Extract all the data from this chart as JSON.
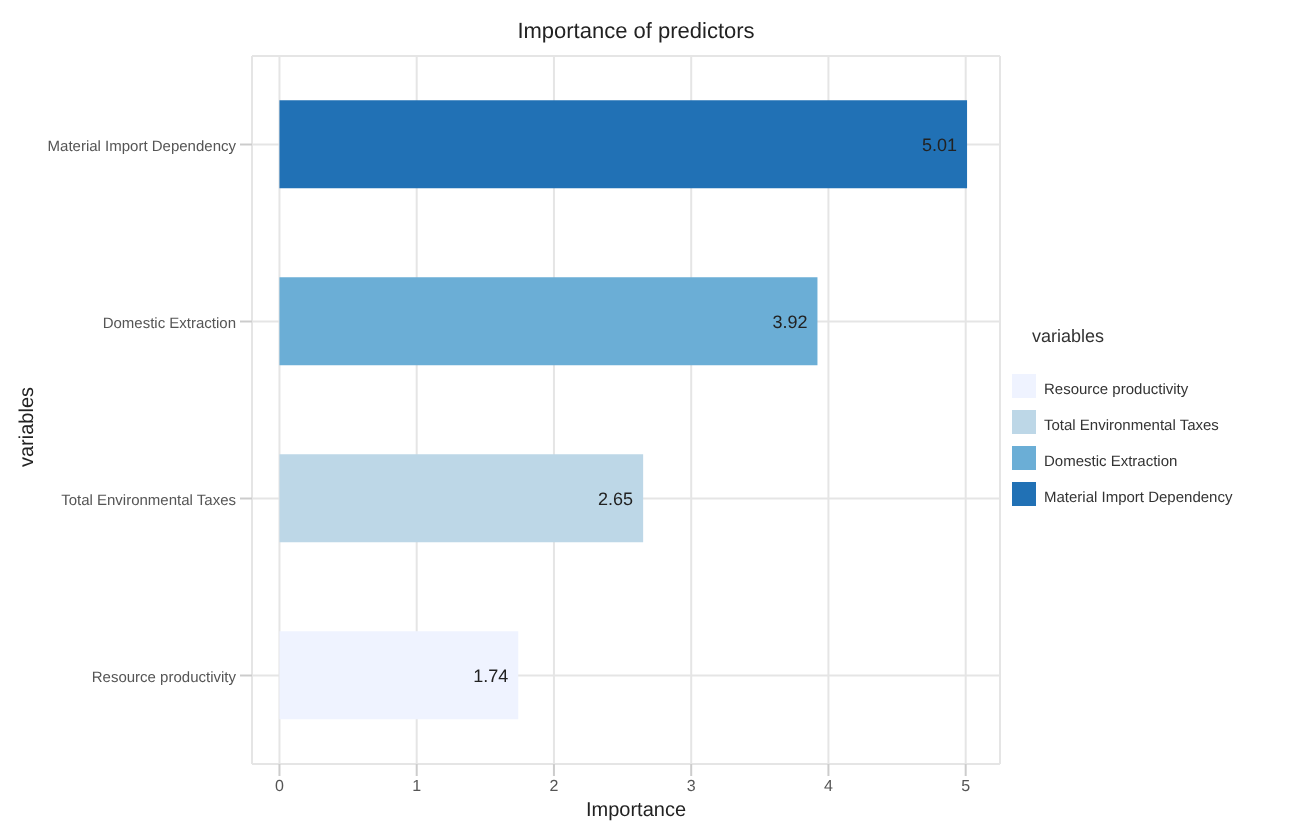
{
  "chart_data": {
    "type": "bar",
    "orientation": "horizontal",
    "stacked": true,
    "title": "Importance of predictors",
    "xlabel": "Importance",
    "ylabel": "variables",
    "legend_title": "variables",
    "categories": [
      "Material Import Dependency",
      "Domestic Extraction",
      "Total Environmental Taxes",
      "Resource productivity"
    ],
    "series": [
      {
        "name": "Resource productivity",
        "color": "#eff3ff",
        "values": [
          null,
          null,
          null,
          1.74
        ]
      },
      {
        "name": "Total Environmental Taxes",
        "color": "#bdd7e7",
        "values": [
          null,
          null,
          2.65,
          null
        ]
      },
      {
        "name": "Domestic Extraction",
        "color": "#6baed6",
        "values": [
          null,
          3.92,
          null,
          null
        ]
      },
      {
        "name": "Material Import Dependency",
        "color": "#2171b5",
        "values": [
          5.01,
          null,
          null,
          null
        ]
      }
    ],
    "xlim": [
      -0.2,
      5.25
    ],
    "xticks": [
      0,
      1,
      2,
      3,
      4,
      5
    ],
    "grid": true,
    "legend": "right",
    "data_labels": true
  }
}
